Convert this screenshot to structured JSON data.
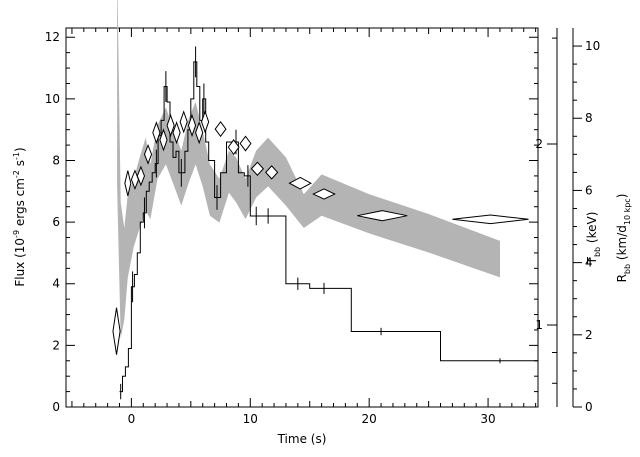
{
  "chart_data": {
    "type": "line",
    "xlabel": "Time (s)",
    "ylabel_left": {
      "main": "Flux (10",
      "sup1": "-9",
      "mid": " ergs cm",
      "sup2": "-2",
      "mid2": " s",
      "sup3": "-1",
      "end": ")"
    },
    "ylabel_temp": {
      "main": "T",
      "sub": "bb",
      "end": " (keV)"
    },
    "ylabel_radius": {
      "main": "R",
      "sub": "bb",
      "mid": " (km/d",
      "sub2": "10 kpc",
      "end": ")"
    },
    "xlim": [
      -5.5,
      34.2
    ],
    "ylim_flux": [
      0,
      12.3
    ],
    "ylim_radius": [
      0,
      10.5
    ],
    "temp_scale": "log",
    "x_ticks": [
      {
        "value": 0,
        "label": "0"
      },
      {
        "value": 10,
        "label": "10"
      },
      {
        "value": 20,
        "label": "20"
      },
      {
        "value": 30,
        "label": "30"
      }
    ],
    "flux_ticks": [
      {
        "value": 0,
        "label": "0"
      },
      {
        "value": 2,
        "label": "2"
      },
      {
        "value": 4,
        "label": "4"
      },
      {
        "value": 6,
        "label": "6"
      },
      {
        "value": 8,
        "label": "8"
      },
      {
        "value": 10,
        "label": "10"
      },
      {
        "value": 12,
        "label": "12"
      }
    ],
    "temp_ticks": [
      {
        "value": 1,
        "label": "1"
      },
      {
        "value": 2,
        "label": "2"
      }
    ],
    "radius_ticks": [
      {
        "value": 0,
        "label": "0"
      },
      {
        "value": 2,
        "label": "2"
      },
      {
        "value": 4,
        "label": "4"
      },
      {
        "value": 6,
        "label": "6"
      },
      {
        "value": 8,
        "label": "8"
      },
      {
        "value": 10,
        "label": "10"
      }
    ],
    "series": [
      {
        "kind": "flux-histogram",
        "color": "#000000",
        "bins": [
          [
            -1.0,
            -0.75,
            0.5
          ],
          [
            -0.75,
            -0.5,
            1.0
          ],
          [
            -0.5,
            -0.25,
            1.3
          ],
          [
            -0.25,
            0.0,
            1.9
          ],
          [
            0.0,
            0.25,
            3.9
          ],
          [
            0.25,
            0.5,
            4.3
          ],
          [
            0.5,
            0.75,
            5.0
          ],
          [
            0.75,
            1.0,
            6.0
          ],
          [
            1.0,
            1.25,
            6.3
          ],
          [
            1.25,
            1.5,
            7.0
          ],
          [
            1.5,
            1.75,
            7.3
          ],
          [
            1.75,
            2.0,
            7.6
          ],
          [
            2.0,
            2.25,
            7.9
          ],
          [
            2.25,
            2.5,
            8.8
          ],
          [
            2.5,
            2.75,
            9.3
          ],
          [
            2.75,
            3.0,
            10.4
          ],
          [
            3.0,
            3.25,
            9.9
          ],
          [
            3.25,
            3.5,
            8.6
          ],
          [
            3.5,
            3.75,
            8.1
          ],
          [
            3.75,
            4.0,
            8.3
          ],
          [
            4.0,
            4.5,
            7.6
          ],
          [
            4.5,
            4.75,
            8.3
          ],
          [
            4.75,
            5.0,
            9.0
          ],
          [
            5.0,
            5.25,
            10.0
          ],
          [
            5.25,
            5.5,
            11.2
          ],
          [
            5.5,
            5.75,
            10.4
          ],
          [
            5.75,
            6.0,
            9.3
          ],
          [
            6.0,
            6.25,
            10.0
          ],
          [
            6.25,
            6.5,
            8.6
          ],
          [
            6.5,
            7.0,
            8.0
          ],
          [
            7.0,
            7.5,
            6.8
          ],
          [
            7.5,
            8.0,
            7.6
          ],
          [
            8.0,
            8.5,
            8.6
          ],
          [
            8.5,
            9.0,
            8.6
          ],
          [
            9.0,
            9.5,
            7.6
          ],
          [
            9.5,
            10.0,
            7.5
          ],
          [
            10.0,
            11.0,
            6.2
          ],
          [
            11.0,
            12.0,
            6.2
          ],
          [
            12.0,
            13.0,
            6.2
          ],
          [
            13.0,
            15.0,
            4.0
          ],
          [
            15.0,
            18.5,
            3.85
          ],
          [
            18.5,
            26.0,
            2.45
          ],
          [
            26.0,
            34.2,
            1.5
          ]
        ],
        "errors": [
          {
            "x": -0.9,
            "y": 0.5,
            "err": 0.25
          },
          {
            "x": 0.1,
            "y": 3.9,
            "err": 0.5
          },
          {
            "x": 1.1,
            "y": 6.3,
            "err": 0.5
          },
          {
            "x": 2.1,
            "y": 7.9,
            "err": 0.45
          },
          {
            "x": 2.9,
            "y": 10.4,
            "err": 0.5
          },
          {
            "x": 4.2,
            "y": 7.6,
            "err": 0.45
          },
          {
            "x": 5.4,
            "y": 11.2,
            "err": 0.5
          },
          {
            "x": 6.1,
            "y": 10.0,
            "err": 0.5
          },
          {
            "x": 7.2,
            "y": 6.8,
            "err": 0.4
          },
          {
            "x": 8.8,
            "y": 8.6,
            "err": 0.4
          },
          {
            "x": 9.8,
            "y": 7.5,
            "err": 0.35
          },
          {
            "x": 10.5,
            "y": 6.2,
            "err": 0.3
          },
          {
            "x": 11.5,
            "y": 6.2,
            "err": 0.25
          },
          {
            "x": 14.0,
            "y": 4.0,
            "err": 0.2
          },
          {
            "x": 16.2,
            "y": 3.85,
            "err": 0.18
          },
          {
            "x": 21.0,
            "y": 2.45,
            "err": 0.12
          },
          {
            "x": 31.0,
            "y": 1.5,
            "err": 0.08
          }
        ]
      },
      {
        "kind": "radius-diamonds",
        "color": "#000000",
        "points": [
          {
            "x": -1.25,
            "y": 2.1,
            "dx": 0.3,
            "dy": 0.65
          },
          {
            "x": -0.3,
            "y": 6.2,
            "dx": 0.25,
            "dy": 0.35
          },
          {
            "x": 0.3,
            "y": 6.3,
            "dx": 0.3,
            "dy": 0.25
          },
          {
            "x": 0.8,
            "y": 6.4,
            "dx": 0.3,
            "dy": 0.25
          },
          {
            "x": 1.4,
            "y": 7.0,
            "dx": 0.3,
            "dy": 0.25
          },
          {
            "x": 2.1,
            "y": 7.6,
            "dx": 0.3,
            "dy": 0.28
          },
          {
            "x": 2.7,
            "y": 7.4,
            "dx": 0.3,
            "dy": 0.28
          },
          {
            "x": 3.3,
            "y": 7.8,
            "dx": 0.3,
            "dy": 0.28
          },
          {
            "x": 3.8,
            "y": 7.6,
            "dx": 0.3,
            "dy": 0.28
          },
          {
            "x": 4.4,
            "y": 7.9,
            "dx": 0.3,
            "dy": 0.28
          },
          {
            "x": 5.1,
            "y": 7.8,
            "dx": 0.3,
            "dy": 0.28
          },
          {
            "x": 5.7,
            "y": 7.6,
            "dx": 0.3,
            "dy": 0.28
          },
          {
            "x": 6.2,
            "y": 7.9,
            "dx": 0.3,
            "dy": 0.28
          },
          {
            "x": 7.5,
            "y": 7.7,
            "dx": 0.45,
            "dy": 0.2
          },
          {
            "x": 8.6,
            "y": 7.2,
            "dx": 0.45,
            "dy": 0.2
          },
          {
            "x": 9.6,
            "y": 7.3,
            "dx": 0.45,
            "dy": 0.2
          },
          {
            "x": 10.6,
            "y": 6.6,
            "dx": 0.5,
            "dy": 0.18
          },
          {
            "x": 11.8,
            "y": 6.5,
            "dx": 0.5,
            "dy": 0.18
          },
          {
            "x": 14.2,
            "y": 6.2,
            "dx": 0.9,
            "dy": 0.16
          },
          {
            "x": 16.2,
            "y": 5.9,
            "dx": 0.9,
            "dy": 0.14
          },
          {
            "x": 21.1,
            "y": 5.3,
            "dx": 2.1,
            "dy": 0.14
          },
          {
            "x": 30.2,
            "y": 5.2,
            "dx": 3.2,
            "dy": 0.12
          }
        ]
      },
      {
        "kind": "temperature-band",
        "color": "#b4b4b4",
        "upper": [
          {
            "x": -1.2,
            "t": 4.0
          },
          {
            "x": -0.9,
            "t": 1.6
          },
          {
            "x": -0.6,
            "t": 1.45
          },
          {
            "x": -0.3,
            "t": 1.65
          },
          {
            "x": 0.2,
            "t": 1.75
          },
          {
            "x": 0.7,
            "t": 1.9
          },
          {
            "x": 1.2,
            "t": 2.05
          },
          {
            "x": 1.6,
            "t": 1.85
          },
          {
            "x": 2.2,
            "t": 2.15
          },
          {
            "x": 2.9,
            "t": 2.3
          },
          {
            "x": 3.6,
            "t": 2.1
          },
          {
            "x": 4.2,
            "t": 1.95
          },
          {
            "x": 4.8,
            "t": 2.2
          },
          {
            "x": 5.4,
            "t": 2.35
          },
          {
            "x": 6.0,
            "t": 2.1
          },
          {
            "x": 6.6,
            "t": 1.85
          },
          {
            "x": 7.4,
            "t": 1.75
          },
          {
            "x": 8.2,
            "t": 1.95
          },
          {
            "x": 8.8,
            "t": 1.9
          },
          {
            "x": 9.6,
            "t": 1.75
          },
          {
            "x": 10.5,
            "t": 1.95
          },
          {
            "x": 11.5,
            "t": 2.05
          },
          {
            "x": 13.0,
            "t": 1.9
          },
          {
            "x": 14.5,
            "t": 1.65
          },
          {
            "x": 16.0,
            "t": 1.78
          },
          {
            "x": 20.0,
            "t": 1.65
          },
          {
            "x": 25.0,
            "t": 1.53
          },
          {
            "x": 31.0,
            "t": 1.38
          }
        ],
        "lower": [
          {
            "x": -1.2,
            "t": 1.7
          },
          {
            "x": -0.9,
            "t": 0.95
          },
          {
            "x": -0.6,
            "t": 1.02
          },
          {
            "x": -0.3,
            "t": 1.2
          },
          {
            "x": 0.2,
            "t": 1.35
          },
          {
            "x": 0.7,
            "t": 1.45
          },
          {
            "x": 1.2,
            "t": 1.55
          },
          {
            "x": 1.6,
            "t": 1.5
          },
          {
            "x": 2.2,
            "t": 1.75
          },
          {
            "x": 2.9,
            "t": 1.85
          },
          {
            "x": 3.6,
            "t": 1.7
          },
          {
            "x": 4.2,
            "t": 1.58
          },
          {
            "x": 4.8,
            "t": 1.72
          },
          {
            "x": 5.4,
            "t": 1.85
          },
          {
            "x": 6.0,
            "t": 1.7
          },
          {
            "x": 6.6,
            "t": 1.52
          },
          {
            "x": 7.4,
            "t": 1.48
          },
          {
            "x": 8.2,
            "t": 1.66
          },
          {
            "x": 8.8,
            "t": 1.6
          },
          {
            "x": 9.6,
            "t": 1.5
          },
          {
            "x": 10.5,
            "t": 1.63
          },
          {
            "x": 11.5,
            "t": 1.7
          },
          {
            "x": 13.0,
            "t": 1.58
          },
          {
            "x": 14.5,
            "t": 1.45
          },
          {
            "x": 16.0,
            "t": 1.52
          },
          {
            "x": 20.0,
            "t": 1.42
          },
          {
            "x": 25.0,
            "t": 1.32
          },
          {
            "x": 31.0,
            "t": 1.2
          }
        ]
      }
    ]
  }
}
